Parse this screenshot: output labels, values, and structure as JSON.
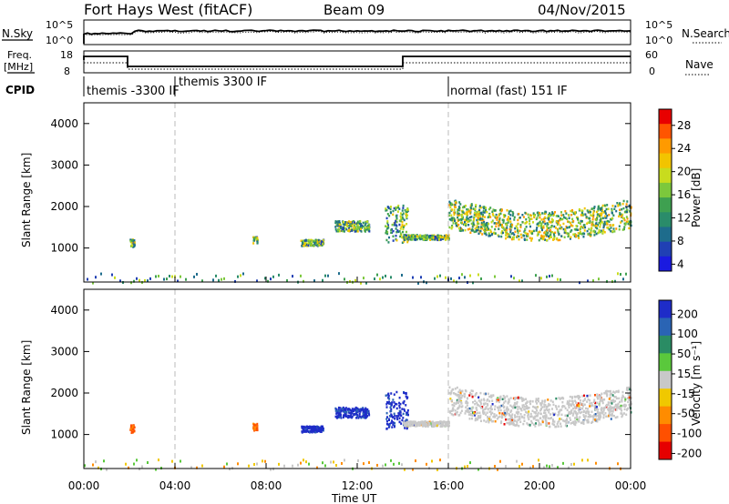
{
  "header": {
    "site": "Fort Hays West (fitACF)",
    "beam": "Beam 09",
    "date": "04/Nov/2015"
  },
  "panels": {
    "noise": {
      "left_label": "N.Sky",
      "right_label": "N.Search",
      "tick_top": "10^5",
      "tick_bottom": "10^0"
    },
    "freq": {
      "left_label": "Freq.",
      "left_unit": "[MHz]",
      "left_ticks": [
        "18",
        "8"
      ],
      "right_ticks": [
        "60",
        "0"
      ],
      "right_label": "Nave"
    },
    "cpid": {
      "label": "CPID",
      "modes": [
        {
          "name": "themis -3300 IF",
          "start_hour": 0
        },
        {
          "name": "themis 3300 IF",
          "start_hour": 4
        },
        {
          "name": "normal (fast) 151 IF",
          "start_hour": 16
        }
      ]
    }
  },
  "power_colorbar": {
    "label": "Power [dB]",
    "ticks": [
      "28",
      "24",
      "20",
      "16",
      "12",
      "8",
      "4"
    ],
    "colors": [
      "#e80000",
      "#ff5500",
      "#ff9a00",
      "#f2c400",
      "#c8dc1e",
      "#7cc83c",
      "#3ea050",
      "#2a8c6a",
      "#1e6c8c",
      "#2040b4",
      "#1a1ae0"
    ]
  },
  "velocity_colorbar": {
    "label": "Velocity [m s⁻¹]",
    "ticks": [
      "200",
      "100",
      "50",
      "15",
      "-15",
      "-50",
      "-100",
      "-200"
    ],
    "colors": [
      "#1e2cc8",
      "#2a64b4",
      "#2a8c64",
      "#5ac83c",
      "#c8c8c8",
      "#f0c800",
      "#ff8c00",
      "#ff5000",
      "#e60000"
    ]
  },
  "axes": {
    "xlabel": "Time UT",
    "ylabel": "Slant Range [km]"
  },
  "chart_data": [
    {
      "type": "heatmap",
      "title": "",
      "quantity": "Power",
      "units": "dB",
      "xlabel": "Time UT",
      "ylabel": "Slant Range [km]",
      "xlim_hours": [
        0,
        24
      ],
      "ylim_km": [
        180,
        4500
      ],
      "xticks": [
        "00:00",
        "04:00",
        "08:00",
        "12:00",
        "16:00",
        "20:00",
        "00:00"
      ],
      "yticks": [
        1000,
        2000,
        3000,
        4000
      ],
      "colorbar_range": [
        0,
        30
      ],
      "dashed_mode_lines_hours": [
        4,
        16
      ],
      "regions": [
        {
          "t_start": 2.0,
          "t_end": 2.2,
          "range_center": 1150,
          "range_width": 200,
          "power": 10
        },
        {
          "t_start": 7.4,
          "t_end": 7.6,
          "range_center": 1200,
          "range_width": 180,
          "power": 11
        },
        {
          "t_start": 9.5,
          "t_end": 10.5,
          "range_center": 1150,
          "range_width": 150,
          "power": 10
        },
        {
          "t_start": 11.0,
          "t_end": 12.5,
          "range_center": 1550,
          "range_width": 250,
          "power": 10
        },
        {
          "t_start": 13.2,
          "t_end": 14.2,
          "range_center": 1600,
          "range_width": 900,
          "power": 16
        },
        {
          "t_start": 14.0,
          "t_end": 16.0,
          "range_center": 1280,
          "range_width": 120,
          "power": 8
        },
        {
          "t_start": 16.0,
          "t_end": 24.0,
          "range_center": 1850,
          "range_width": 700,
          "power": 22
        }
      ],
      "ground_scatter_band_km": [
        180,
        420
      ]
    },
    {
      "type": "heatmap",
      "title": "",
      "quantity": "Velocity",
      "units": "m s⁻¹",
      "xlabel": "Time UT",
      "ylabel": "Slant Range [km]",
      "xlim_hours": [
        0,
        24
      ],
      "ylim_km": [
        180,
        4500
      ],
      "xticks": [
        "00:00",
        "04:00",
        "08:00",
        "12:00",
        "16:00",
        "20:00",
        "00:00"
      ],
      "yticks": [
        1000,
        2000,
        3000,
        4000
      ],
      "colorbar_range": [
        -200,
        200
      ],
      "dashed_mode_lines_hours": [
        4,
        16
      ],
      "regions": [
        {
          "t_start": 2.0,
          "t_end": 2.2,
          "range_center": 1150,
          "range_width": 200,
          "velocity": -80
        },
        {
          "t_start": 7.4,
          "t_end": 7.6,
          "range_center": 1200,
          "range_width": 180,
          "velocity": -80
        },
        {
          "t_start": 9.5,
          "t_end": 10.5,
          "range_center": 1150,
          "range_width": 150,
          "velocity": 200
        },
        {
          "t_start": 11.0,
          "t_end": 12.5,
          "range_center": 1550,
          "range_width": 250,
          "velocity": 200
        },
        {
          "t_start": 13.2,
          "t_end": 14.2,
          "range_center": 1600,
          "range_width": 900,
          "velocity": 220
        },
        {
          "t_start": 14.0,
          "t_end": 16.0,
          "range_center": 1280,
          "range_width": 120,
          "velocity": 0
        },
        {
          "t_start": 16.0,
          "t_end": 24.0,
          "range_center": 1850,
          "range_width": 700,
          "velocity": 0
        }
      ],
      "ground_scatter_band_km": [
        180,
        420
      ]
    }
  ]
}
